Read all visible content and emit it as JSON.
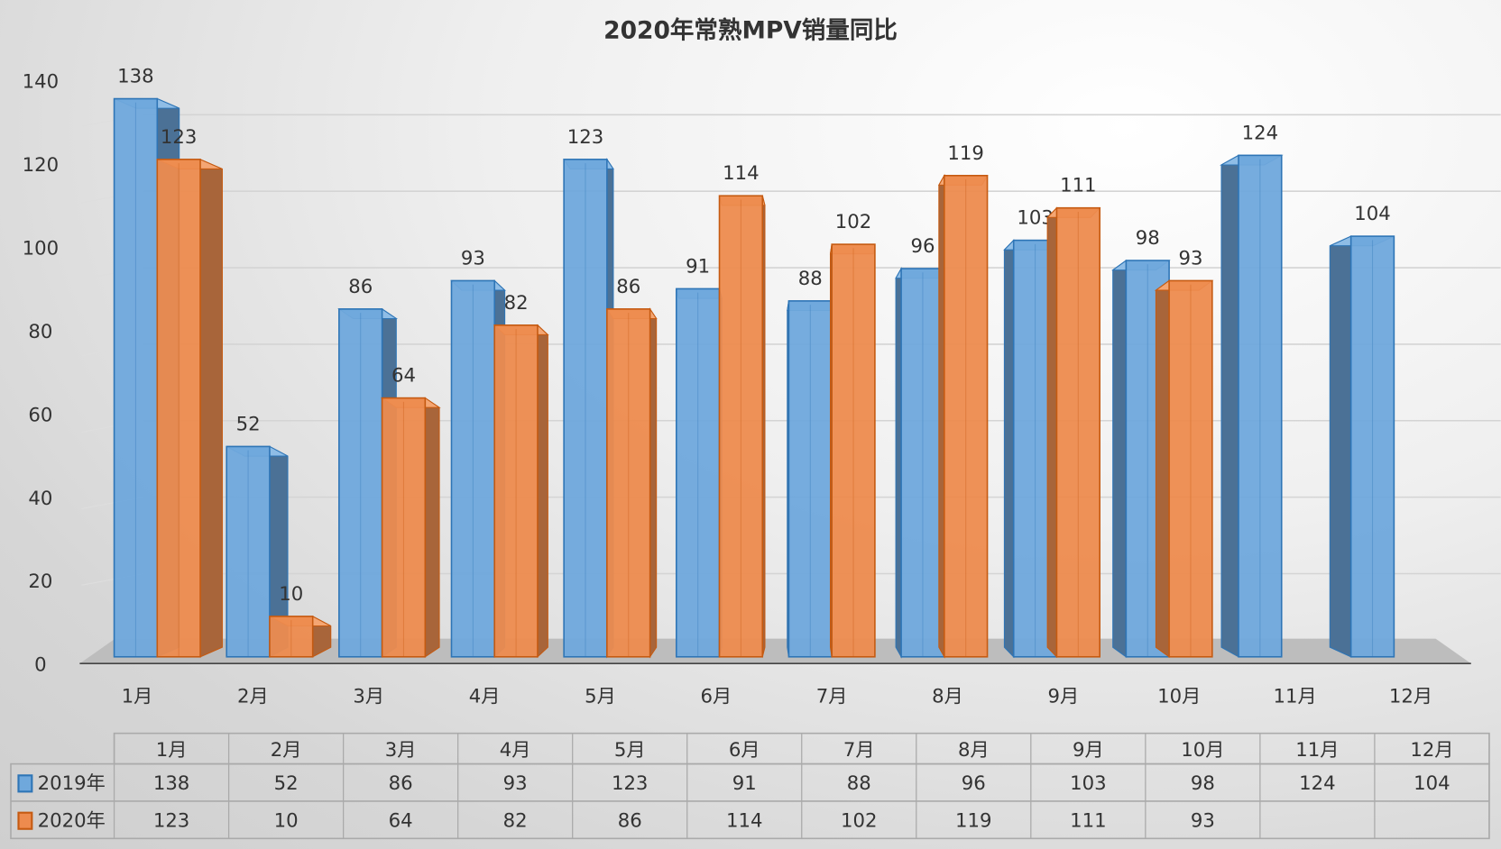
{
  "chart_data": {
    "type": "bar",
    "title": "2020年常熟MPV销量同比",
    "categories": [
      "1月",
      "2月",
      "3月",
      "4月",
      "5月",
      "6月",
      "7月",
      "8月",
      "9月",
      "10月",
      "11月",
      "12月"
    ],
    "series": [
      {
        "name": "2019年",
        "color": "#6fa8dc",
        "values": [
          138,
          52,
          86,
          93,
          123,
          91,
          88,
          96,
          103,
          98,
          124,
          104
        ]
      },
      {
        "name": "2020年",
        "color": "#ed8b4e",
        "values": [
          123,
          10,
          64,
          82,
          86,
          114,
          102,
          119,
          111,
          93,
          null,
          null
        ]
      }
    ],
    "ylim": [
      0,
      140
    ],
    "yticks": [
      0,
      20,
      40,
      60,
      80,
      100,
      120,
      140
    ],
    "xlabel": "",
    "ylabel": "",
    "grid": true,
    "legend": "data-table-bottom",
    "data_table": true
  }
}
